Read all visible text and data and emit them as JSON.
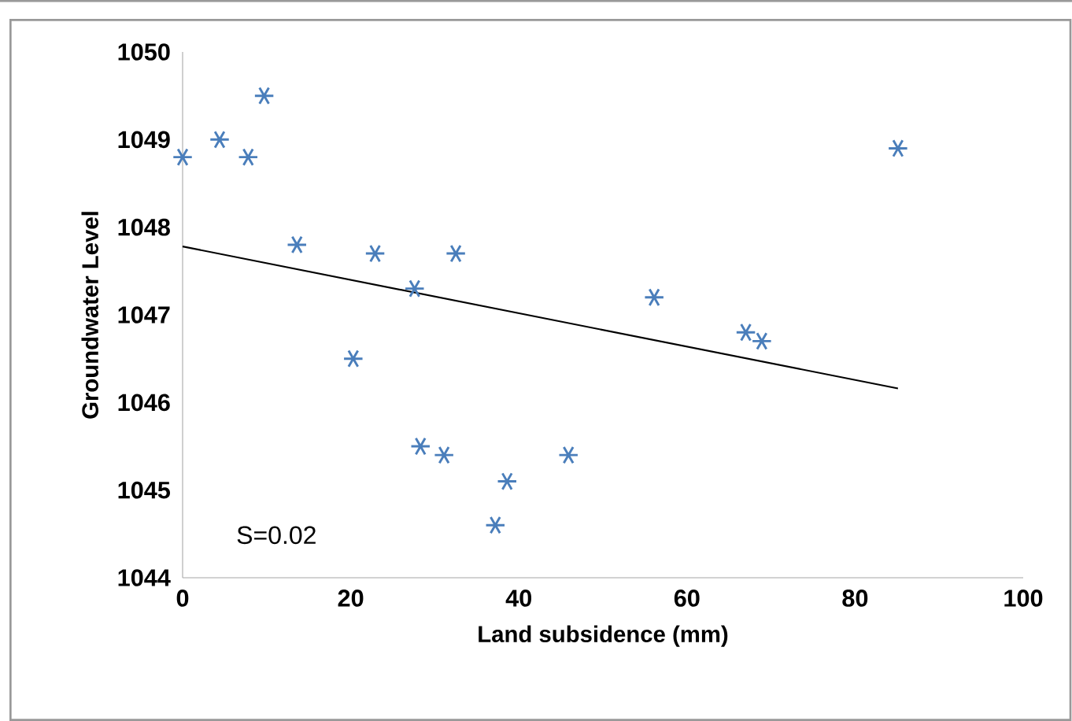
{
  "chart_data": {
    "type": "scatter",
    "xlabel": "Land subsidence (mm)",
    "ylabel": "Groundwater Level",
    "xlim": [
      0,
      100
    ],
    "xticks": [
      0,
      20,
      40,
      60,
      80,
      100
    ],
    "ylim": [
      1044,
      1050
    ],
    "yticks": [
      1044,
      1045,
      1046,
      1047,
      1048,
      1049,
      1050
    ],
    "grid": false,
    "series": [
      {
        "marker": "cross",
        "color": "#4a7ebb",
        "x": [
          0,
          4.4,
          7.8,
          9.7,
          13.6,
          20.3,
          22.9,
          27.6,
          28.3,
          31.1,
          32.5,
          37.2,
          38.6,
          45.9,
          56.1,
          67.0,
          68.9,
          85.1
        ],
        "values": [
          1048.8,
          1049.0,
          1048.8,
          1049.5,
          1047.8,
          1046.5,
          1047.7,
          1047.3,
          1045.5,
          1045.4,
          1047.7,
          1044.6,
          1045.1,
          1045.4,
          1047.2,
          1046.8,
          1046.7,
          1048.9
        ]
      },
      {
        "type": "line",
        "marker": "none",
        "color": "#000000",
        "x": [
          0,
          85.1
        ],
        "values": [
          1047.78,
          1046.16
        ]
      }
    ],
    "annotations": [
      "S=0.02"
    ]
  }
}
